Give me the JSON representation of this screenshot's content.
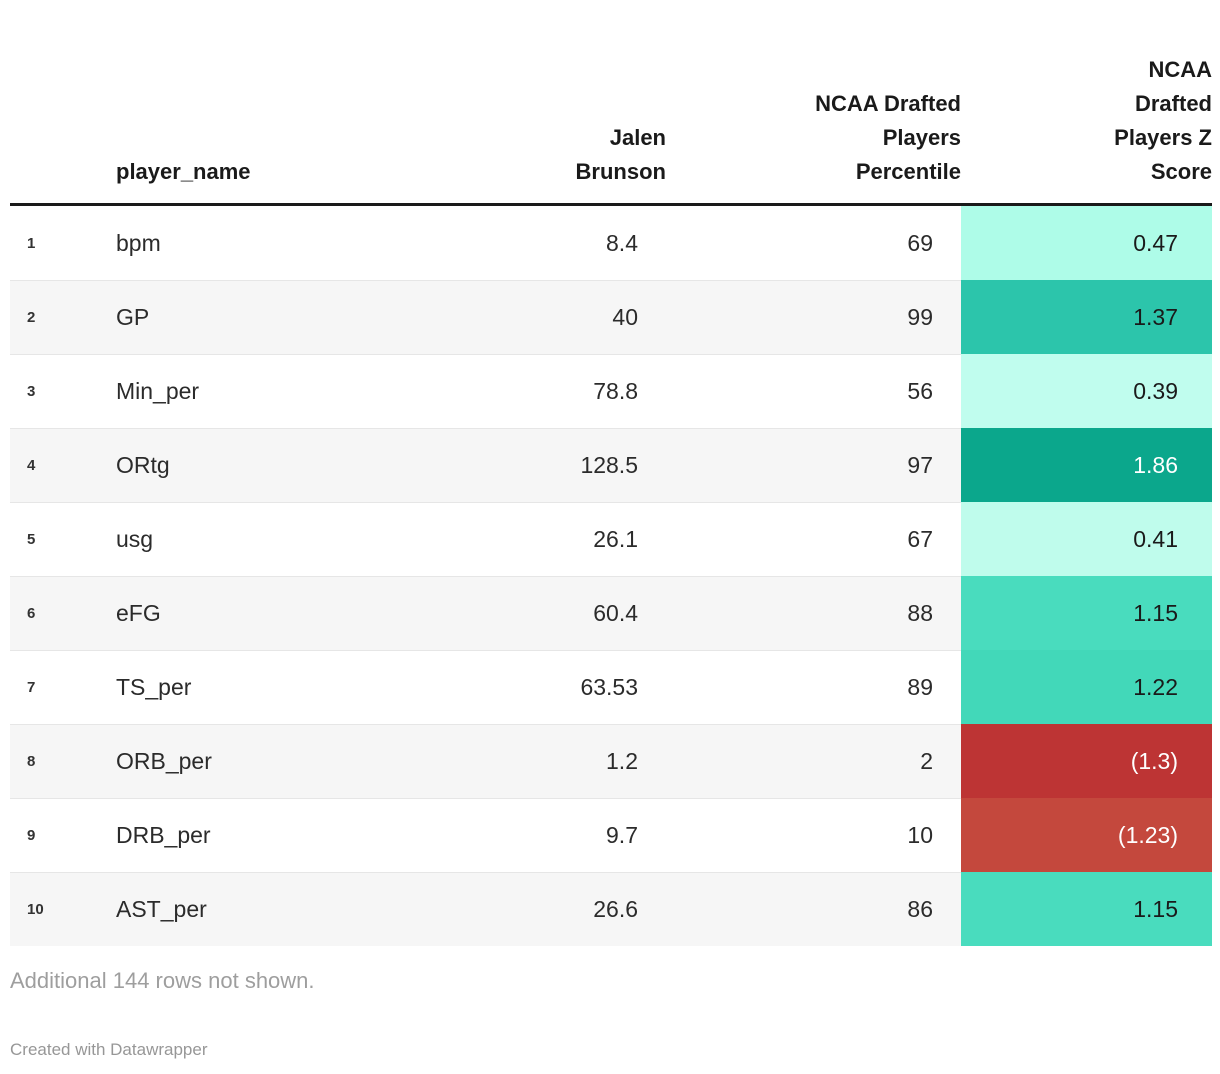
{
  "chart_data": {
    "type": "table",
    "title": "",
    "columns": [
      "player_name",
      "Jalen Brunson",
      "NCAA Drafted Players Percentile",
      "NCAA Drafted Players Z Score"
    ],
    "rows": [
      {
        "stat": "bpm",
        "jalen_brunson": 8.4,
        "percentile": 69,
        "z_score": 0.47
      },
      {
        "stat": "GP",
        "jalen_brunson": 40,
        "percentile": 99,
        "z_score": 1.37
      },
      {
        "stat": "Min_per",
        "jalen_brunson": 78.8,
        "percentile": 56,
        "z_score": 0.39
      },
      {
        "stat": "ORtg",
        "jalen_brunson": 128.5,
        "percentile": 97,
        "z_score": 1.86
      },
      {
        "stat": "usg",
        "jalen_brunson": 26.1,
        "percentile": 67,
        "z_score": 0.41
      },
      {
        "stat": "eFG",
        "jalen_brunson": 60.4,
        "percentile": 88,
        "z_score": 1.15
      },
      {
        "stat": "TS_per",
        "jalen_brunson": 63.53,
        "percentile": 89,
        "z_score": 1.22
      },
      {
        "stat": "ORB_per",
        "jalen_brunson": 1.2,
        "percentile": 2,
        "z_score": -1.3
      },
      {
        "stat": "DRB_per",
        "jalen_brunson": 9.7,
        "percentile": 10,
        "z_score": -1.23
      },
      {
        "stat": "AST_per",
        "jalen_brunson": 26.6,
        "percentile": 86,
        "z_score": 1.15
      }
    ],
    "heatmap_column": "NCAA Drafted Players Z Score",
    "notes": "Additional 144 rows not shown."
  },
  "header": {
    "index_label": "",
    "player_name_label": "player_name",
    "value_label": "Jalen Brunson",
    "percentile_label": "NCAA Drafted Players Percentile",
    "z_score_label": "NCAA Drafted Players Z Score"
  },
  "rows": [
    {
      "index": "1",
      "name": "bpm",
      "value": "8.4",
      "percentile": "69",
      "z": "0.47",
      "z_bg": "#aefce8",
      "z_fg": "#1a1a1a"
    },
    {
      "index": "2",
      "name": "GP",
      "value": "40",
      "percentile": "99",
      "z": "1.37",
      "z_bg": "#2cc5ab",
      "z_fg": "#1a1a1a"
    },
    {
      "index": "3",
      "name": "Min_per",
      "value": "78.8",
      "percentile": "56",
      "z": "0.39",
      "z_bg": "#c0fdee",
      "z_fg": "#1a1a1a"
    },
    {
      "index": "4",
      "name": "ORtg",
      "value": "128.5",
      "percentile": "97",
      "z": "1.86",
      "z_bg": "#0ba78c",
      "z_fg": "#ffffff"
    },
    {
      "index": "5",
      "name": "usg",
      "value": "26.1",
      "percentile": "67",
      "z": "0.41",
      "z_bg": "#bffcec",
      "z_fg": "#1a1a1a"
    },
    {
      "index": "6",
      "name": "eFG",
      "value": "60.4",
      "percentile": "88",
      "z": "1.15",
      "z_bg": "#49dcbe",
      "z_fg": "#1a1a1a"
    },
    {
      "index": "7",
      "name": "TS_per",
      "value": "63.53",
      "percentile": "89",
      "z": "1.22",
      "z_bg": "#42d8b9",
      "z_fg": "#1a1a1a"
    },
    {
      "index": "8",
      "name": "ORB_per",
      "value": "1.2",
      "percentile": "2",
      "z": "(1.3)",
      "z_bg": "#bd3434",
      "z_fg": "#ffffff"
    },
    {
      "index": "9",
      "name": "DRB_per",
      "value": "9.7",
      "percentile": "10",
      "z": "(1.23)",
      "z_bg": "#c4483d",
      "z_fg": "#ffffff"
    },
    {
      "index": "10",
      "name": "AST_per",
      "value": "26.6",
      "percentile": "86",
      "z": "1.15",
      "z_bg": "#49dcbe",
      "z_fg": "#1a1a1a"
    }
  ],
  "colors": {
    "header_rule": "#1a1a1a",
    "row_divider": "#e6e6e6",
    "zebra_stripe": "#f6f6f6",
    "scale_positive_max": "#0ba78c",
    "scale_positive_min": "#c0fdee",
    "scale_negative": "#bd3434"
  },
  "footer": {
    "note": "Additional 144 rows not shown.",
    "attribution": "Created with Datawrapper"
  }
}
